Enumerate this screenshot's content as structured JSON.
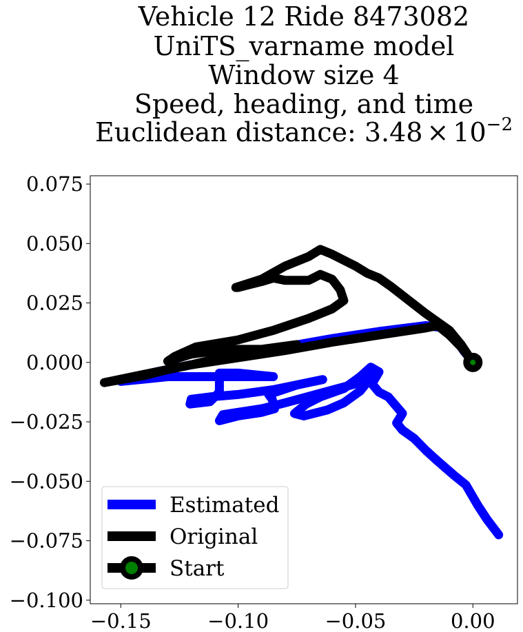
{
  "chart_data": {
    "type": "line",
    "title_lines": [
      "Vehicle 12 Ride 8473082",
      "UniTS_varname model",
      "Window size 4",
      "Speed, heading, and time"
    ],
    "title_distance_prefix": "Euclidean distance: 3.48",
    "title_distance_times": "×",
    "title_distance_base": "10",
    "title_distance_exp": "−2",
    "xlim": [
      -0.163,
      0.019
    ],
    "ylim": [
      -0.1015,
      0.0785
    ],
    "x_ticks": [
      {
        "value": -0.15,
        "label": "−0.15"
      },
      {
        "value": -0.1,
        "label": "−0.10"
      },
      {
        "value": -0.05,
        "label": "−0.05"
      },
      {
        "value": 0.0,
        "label": "0.00"
      }
    ],
    "y_ticks": [
      {
        "value": 0.075,
        "label": "0.075"
      },
      {
        "value": 0.05,
        "label": "0.050"
      },
      {
        "value": 0.025,
        "label": "0.025"
      },
      {
        "value": 0.0,
        "label": "0.000"
      },
      {
        "value": -0.025,
        "label": "−0.025"
      },
      {
        "value": -0.05,
        "label": "−0.050"
      },
      {
        "value": -0.075,
        "label": "−0.075"
      },
      {
        "value": -0.1,
        "label": "−0.100"
      }
    ],
    "legend": {
      "position": "lower-left",
      "entries": [
        {
          "key": "estimated",
          "label": "Estimated"
        },
        {
          "key": "original",
          "label": "Original"
        },
        {
          "key": "start",
          "label": "Start"
        }
      ]
    },
    "series": [
      {
        "name": "Estimated",
        "color": "#0000ff",
        "points": [
          [
            0.0,
            0.0
          ],
          [
            -0.004,
            0.005
          ],
          [
            -0.008,
            0.011
          ],
          [
            -0.012,
            0.0145
          ],
          [
            -0.02,
            0.0155
          ],
          [
            -0.04,
            0.013
          ],
          [
            -0.06,
            0.01
          ],
          [
            -0.08,
            0.0065
          ],
          [
            -0.1,
            0.003
          ],
          [
            -0.12,
            -0.001
          ],
          [
            -0.135,
            -0.004
          ],
          [
            -0.15,
            -0.008
          ],
          [
            -0.14,
            -0.007
          ],
          [
            -0.13,
            -0.006
          ],
          [
            -0.125,
            -0.006
          ],
          [
            -0.1,
            -0.006
          ],
          [
            -0.085,
            -0.006
          ],
          [
            -0.1,
            -0.0045
          ],
          [
            -0.108,
            -0.0045
          ],
          [
            -0.108,
            -0.0125
          ],
          [
            -0.112,
            -0.0165
          ],
          [
            -0.1205,
            -0.0175
          ],
          [
            -0.12,
            -0.0155
          ],
          [
            -0.112,
            -0.0145
          ],
          [
            -0.1,
            -0.0135
          ],
          [
            -0.085,
            -0.0115
          ],
          [
            -0.064,
            -0.0072
          ],
          [
            -0.075,
            -0.0095
          ],
          [
            -0.087,
            -0.0135
          ],
          [
            -0.0855,
            -0.0155
          ],
          [
            -0.0845,
            -0.0195
          ],
          [
            -0.09,
            -0.021
          ],
          [
            -0.1,
            -0.0225
          ],
          [
            -0.108,
            -0.0245
          ],
          [
            -0.1065,
            -0.022
          ],
          [
            -0.09,
            -0.0195
          ],
          [
            -0.08,
            -0.017
          ],
          [
            -0.065,
            -0.013
          ],
          [
            -0.05,
            -0.009
          ],
          [
            -0.0425,
            -0.0035
          ],
          [
            -0.0435,
            -0.0065
          ],
          [
            -0.048,
            -0.012
          ],
          [
            -0.055,
            -0.017
          ],
          [
            -0.062,
            -0.02
          ],
          [
            -0.072,
            -0.0225
          ],
          [
            -0.076,
            -0.0215
          ],
          [
            -0.071,
            -0.0175
          ],
          [
            -0.065,
            -0.0145
          ],
          [
            -0.055,
            -0.011
          ],
          [
            -0.048,
            -0.006
          ],
          [
            -0.0435,
            -0.002
          ],
          [
            -0.04,
            -0.004
          ],
          [
            -0.043,
            -0.009
          ],
          [
            -0.04,
            -0.0125
          ],
          [
            -0.036,
            -0.0145
          ],
          [
            -0.03,
            -0.0215
          ],
          [
            -0.0325,
            -0.0255
          ],
          [
            -0.03,
            -0.0285
          ],
          [
            -0.025,
            -0.032
          ],
          [
            -0.02,
            -0.037
          ],
          [
            -0.015,
            -0.0415
          ],
          [
            -0.008,
            -0.0475
          ],
          [
            -0.003,
            -0.0515
          ],
          [
            0.002,
            -0.06
          ],
          [
            0.006,
            -0.066
          ],
          [
            0.011,
            -0.0725
          ]
        ]
      },
      {
        "name": "Original",
        "color": "#000000",
        "points": [
          [
            0.0,
            0.0
          ],
          [
            -0.005,
            0.0065
          ],
          [
            -0.01,
            0.0115
          ],
          [
            -0.015,
            0.0155
          ],
          [
            -0.02,
            0.0145
          ],
          [
            -0.04,
            0.0115
          ],
          [
            -0.06,
            0.0085
          ],
          [
            -0.08,
            0.005
          ],
          [
            -0.1,
            0.002
          ],
          [
            -0.12,
            -0.001
          ],
          [
            -0.14,
            -0.005
          ],
          [
            -0.157,
            -0.0085
          ],
          [
            -0.14,
            -0.0055
          ],
          [
            -0.13,
            -0.003
          ],
          [
            -0.12,
            -0.001
          ],
          [
            -0.105,
            0.0025
          ],
          [
            -0.09,
            0.0055
          ],
          [
            -0.075,
            0.0075
          ],
          [
            -0.09,
            0.0055
          ],
          [
            -0.105,
            0.0055
          ],
          [
            -0.12,
            0.0035
          ],
          [
            -0.13,
            0.0005
          ],
          [
            -0.127,
            0.0025
          ],
          [
            -0.118,
            0.0065
          ],
          [
            -0.1,
            0.0095
          ],
          [
            -0.085,
            0.0135
          ],
          [
            -0.07,
            0.0185
          ],
          [
            -0.06,
            0.0225
          ],
          [
            -0.055,
            0.026
          ],
          [
            -0.0565,
            0.0305
          ],
          [
            -0.06,
            0.035
          ],
          [
            -0.065,
            0.037
          ],
          [
            -0.068,
            0.0355
          ],
          [
            -0.07,
            0.0345
          ],
          [
            -0.08,
            0.0345
          ],
          [
            -0.085,
            0.0355
          ],
          [
            -0.09,
            0.034
          ],
          [
            -0.1,
            0.0315
          ],
          [
            -0.101,
            0.0315
          ],
          [
            -0.09,
            0.035
          ],
          [
            -0.08,
            0.0405
          ],
          [
            -0.07,
            0.0445
          ],
          [
            -0.065,
            0.0475
          ],
          [
            -0.06,
            0.0455
          ],
          [
            -0.05,
            0.0405
          ],
          [
            -0.045,
            0.0375
          ],
          [
            -0.04,
            0.0355
          ],
          [
            -0.035,
            0.032
          ],
          [
            -0.02,
            0.0205
          ],
          [
            -0.01,
            0.0135
          ],
          [
            -0.005,
            0.0075
          ],
          [
            0.0,
            0.0
          ]
        ]
      }
    ],
    "start_marker": {
      "label": "Start",
      "x": 0.0,
      "y": 0.0,
      "fill": "#008000",
      "edge": "#000000"
    }
  }
}
